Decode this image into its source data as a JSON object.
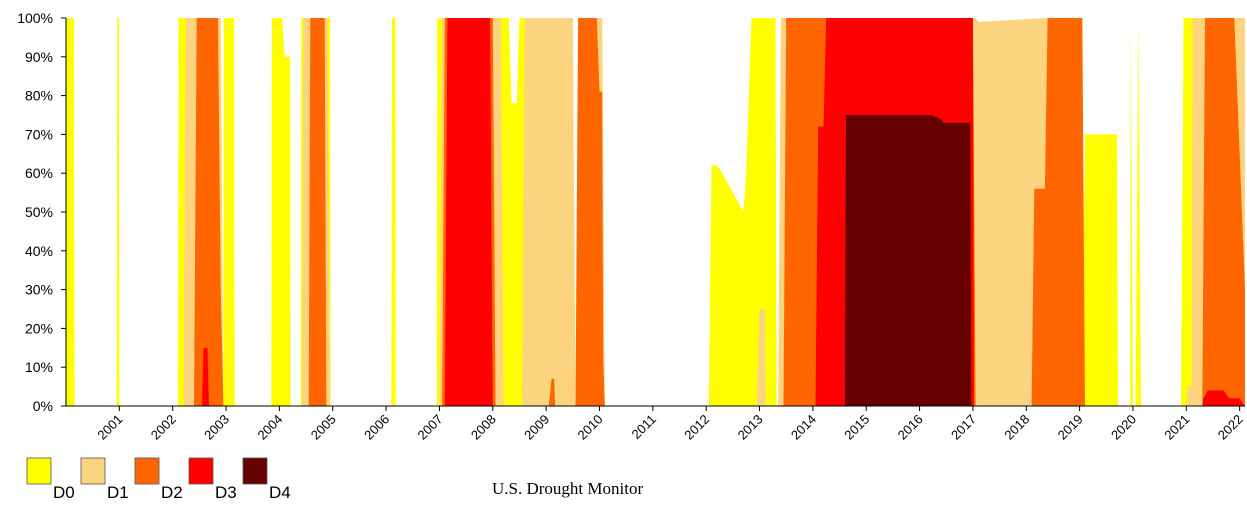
{
  "chart_data": {
    "type": "area",
    "title": "",
    "xlabel": "",
    "ylabel": "",
    "ylim": [
      0,
      100
    ],
    "y_ticks": [
      "0%",
      "10%",
      "20%",
      "30%",
      "40%",
      "50%",
      "60%",
      "70%",
      "80%",
      "90%",
      "100%"
    ],
    "x_ticks": [
      "2001",
      "2002",
      "2003",
      "2004",
      "2005",
      "2006",
      "2007",
      "2008",
      "2009",
      "2010",
      "2011",
      "2012",
      "2013",
      "2014",
      "2015",
      "2016",
      "2017",
      "2018",
      "2019",
      "2020",
      "2021",
      "2022"
    ],
    "xlim": [
      2000.0,
      2022.1
    ],
    "grid": false,
    "legend_position": "bottom-left",
    "colors": {
      "D0": "#FFFF00",
      "D1": "#FCD37F",
      "D2": "#FF6600",
      "D3": "#FF0000",
      "D4": "#660000"
    },
    "series": [
      {
        "name": "D0",
        "values": [
          [
            2000.0,
            100
          ],
          [
            2000.15,
            100
          ],
          [
            2000.16,
            0
          ],
          [
            2000.95,
            0
          ],
          [
            2000.96,
            100
          ],
          [
            2000.99,
            100
          ],
          [
            2001.0,
            0
          ],
          [
            2002.1,
            0
          ],
          [
            2002.11,
            100
          ],
          [
            2002.45,
            100
          ],
          [
            2002.46,
            0
          ],
          [
            2002.95,
            0
          ],
          [
            2002.96,
            100
          ],
          [
            2003.15,
            100
          ],
          [
            2003.16,
            0
          ],
          [
            2003.85,
            0
          ],
          [
            2003.86,
            100
          ],
          [
            2004.05,
            100
          ],
          [
            2004.1,
            90
          ],
          [
            2004.2,
            90
          ],
          [
            2004.21,
            0
          ],
          [
            2004.4,
            0
          ],
          [
            2004.41,
            100
          ],
          [
            2004.95,
            100
          ],
          [
            2004.96,
            0
          ],
          [
            2006.1,
            0
          ],
          [
            2006.11,
            100
          ],
          [
            2006.17,
            100
          ],
          [
            2006.18,
            0
          ],
          [
            2006.95,
            0
          ],
          [
            2006.96,
            100
          ],
          [
            2008.3,
            100
          ],
          [
            2008.35,
            78
          ],
          [
            2008.45,
            78
          ],
          [
            2008.5,
            100
          ],
          [
            2009.5,
            100
          ],
          [
            2009.55,
            0
          ],
          [
            2012.05,
            0
          ],
          [
            2012.1,
            62
          ],
          [
            2012.2,
            62
          ],
          [
            2012.3,
            60
          ],
          [
            2012.5,
            55
          ],
          [
            2012.7,
            50
          ],
          [
            2012.75,
            60
          ],
          [
            2012.85,
            100
          ],
          [
            2013.3,
            100
          ],
          [
            2013.32,
            0
          ],
          [
            2019.05,
            0
          ],
          [
            2019.1,
            70
          ],
          [
            2019.7,
            70
          ],
          [
            2019.72,
            0
          ],
          [
            2019.95,
            0
          ],
          [
            2019.96,
            100
          ],
          [
            2020.0,
            0
          ],
          [
            2020.05,
            0
          ],
          [
            2020.1,
            100
          ],
          [
            2020.15,
            0
          ],
          [
            2020.9,
            0
          ],
          [
            2020.95,
            100
          ],
          [
            2022.1,
            100
          ]
        ]
      },
      {
        "name": "D1",
        "values": [
          [
            2000.0,
            0
          ],
          [
            2002.2,
            0
          ],
          [
            2002.25,
            100
          ],
          [
            2002.9,
            100
          ],
          [
            2002.95,
            0
          ],
          [
            2003.9,
            0
          ],
          [
            2004.0,
            0
          ],
          [
            2004.42,
            0
          ],
          [
            2004.45,
            100
          ],
          [
            2004.9,
            100
          ],
          [
            2004.95,
            0
          ],
          [
            2007.0,
            0
          ],
          [
            2007.05,
            100
          ],
          [
            2008.15,
            100
          ],
          [
            2008.2,
            0
          ],
          [
            2008.55,
            0
          ],
          [
            2008.6,
            100
          ],
          [
            2009.5,
            100
          ],
          [
            2009.55,
            0
          ],
          [
            2009.9,
            0
          ],
          [
            2009.92,
            100
          ],
          [
            2010.05,
            100
          ],
          [
            2010.1,
            0
          ],
          [
            2012.95,
            0
          ],
          [
            2013.0,
            25
          ],
          [
            2013.1,
            25
          ],
          [
            2013.12,
            0
          ],
          [
            2013.35,
            0
          ],
          [
            2013.4,
            100
          ],
          [
            2017.0,
            100
          ],
          [
            2017.05,
            100
          ],
          [
            2017.1,
            99
          ],
          [
            2018.4,
            100
          ],
          [
            2019.0,
            100
          ],
          [
            2019.05,
            0
          ],
          [
            2021.0,
            0
          ],
          [
            2021.02,
            5
          ],
          [
            2021.1,
            5
          ],
          [
            2021.12,
            100
          ],
          [
            2022.1,
            100
          ]
        ]
      },
      {
        "name": "D2",
        "values": [
          [
            2000.0,
            0
          ],
          [
            2002.4,
            0
          ],
          [
            2002.45,
            100
          ],
          [
            2002.85,
            100
          ],
          [
            2002.9,
            30
          ],
          [
            2002.95,
            0
          ],
          [
            2004.45,
            0
          ],
          [
            2004.55,
            0
          ],
          [
            2004.58,
            100
          ],
          [
            2004.85,
            100
          ],
          [
            2004.88,
            0
          ],
          [
            2007.05,
            0
          ],
          [
            2007.1,
            100
          ],
          [
            2008.0,
            100
          ],
          [
            2008.05,
            0
          ],
          [
            2009.05,
            0
          ],
          [
            2009.1,
            7
          ],
          [
            2009.15,
            7
          ],
          [
            2009.17,
            0
          ],
          [
            2009.55,
            0
          ],
          [
            2009.6,
            100
          ],
          [
            2009.95,
            100
          ],
          [
            2010.0,
            81
          ],
          [
            2010.05,
            81
          ],
          [
            2010.07,
            12
          ],
          [
            2010.1,
            0
          ],
          [
            2013.45,
            0
          ],
          [
            2013.5,
            100
          ],
          [
            2014.2,
            100
          ],
          [
            2014.25,
            100
          ],
          [
            2017.0,
            100
          ],
          [
            2017.05,
            0
          ],
          [
            2018.1,
            0
          ],
          [
            2018.15,
            56
          ],
          [
            2018.35,
            56
          ],
          [
            2018.4,
            100
          ],
          [
            2019.05,
            100
          ],
          [
            2019.1,
            0
          ],
          [
            2021.3,
            0
          ],
          [
            2021.35,
            100
          ],
          [
            2021.9,
            100
          ],
          [
            2022.1,
            30
          ]
        ]
      },
      {
        "name": "D3",
        "values": [
          [
            2000.0,
            0
          ],
          [
            2002.55,
            0
          ],
          [
            2002.58,
            15
          ],
          [
            2002.65,
            15
          ],
          [
            2002.68,
            0
          ],
          [
            2007.1,
            0
          ],
          [
            2007.15,
            100
          ],
          [
            2007.95,
            100
          ],
          [
            2008.0,
            0
          ],
          [
            2014.05,
            0
          ],
          [
            2014.1,
            72
          ],
          [
            2014.2,
            72
          ],
          [
            2014.25,
            100
          ],
          [
            2017.0,
            100
          ],
          [
            2017.02,
            0
          ],
          [
            2021.3,
            0
          ],
          [
            2021.32,
            2
          ],
          [
            2021.4,
            4
          ],
          [
            2021.7,
            4
          ],
          [
            2021.8,
            2
          ],
          [
            2022.0,
            2
          ],
          [
            2022.1,
            0
          ]
        ]
      },
      {
        "name": "D4",
        "values": [
          [
            2000.0,
            0
          ],
          [
            2014.6,
            0
          ],
          [
            2014.62,
            75
          ],
          [
            2016.0,
            75
          ],
          [
            2016.2,
            75
          ],
          [
            2016.4,
            74
          ],
          [
            2016.45,
            73
          ],
          [
            2016.95,
            73
          ],
          [
            2016.97,
            0
          ],
          [
            2022.1,
            0
          ]
        ]
      }
    ]
  },
  "legend": {
    "items": [
      {
        "label": "D0",
        "color": "#FFFF00"
      },
      {
        "label": "D1",
        "color": "#FCD37F"
      },
      {
        "label": "D2",
        "color": "#FF6600"
      },
      {
        "label": "D3",
        "color": "#FF0000"
      },
      {
        "label": "D4",
        "color": "#660000"
      }
    ]
  },
  "source": {
    "label": "U.S. Drought Monitor"
  }
}
